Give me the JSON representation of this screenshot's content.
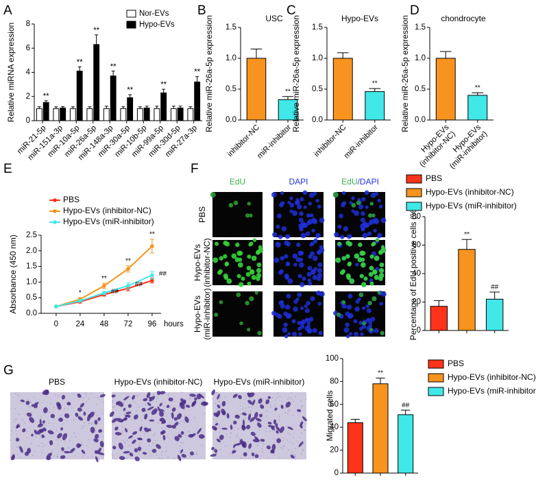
{
  "chart_data": [
    {
      "panel": "A",
      "type": "grouped_bar",
      "ylabel": "Relative miRNA expression",
      "categories": [
        "miR-21-5p",
        "miR-151a-3p",
        "miR-10a-5p",
        "miR-26a-5p",
        "miR-148a-3p",
        "miR-30a-5p",
        "miR-10b-5p",
        "miR-99a-5p",
        "miR-30d-5p",
        "miR-27a-3p"
      ],
      "series": [
        {
          "name": "Nor-EVs",
          "color": "#ffffff",
          "values": [
            1,
            1,
            1,
            1,
            1,
            1,
            1,
            1,
            1,
            1
          ],
          "errors": [
            0.15,
            0.15,
            0.15,
            0.15,
            0.2,
            0.15,
            0.15,
            0.2,
            0.2,
            0.15
          ]
        },
        {
          "name": "Hypo-EVs",
          "color": "#000000",
          "values": [
            1.5,
            1.05,
            4.1,
            6.3,
            3.7,
            1.9,
            1.05,
            2.3,
            1.05,
            3.2
          ],
          "errors": [
            0.15,
            0.12,
            0.35,
            0.8,
            0.4,
            0.25,
            0.15,
            0.3,
            0.15,
            0.45
          ],
          "annotations": [
            "**",
            null,
            "**",
            "**",
            "**",
            "**",
            null,
            "**",
            null,
            "**"
          ]
        }
      ],
      "ylim": [
        0,
        8
      ],
      "yticks": [
        0,
        2,
        4,
        6,
        8
      ]
    },
    {
      "panel": "B",
      "type": "bar",
      "title": "USC",
      "ylabel": "Relative miR-26a-5p expression",
      "categories": [
        "inhibitor-NC",
        "miR-inhibitor"
      ],
      "values": [
        1.0,
        0.33
      ],
      "errors": [
        0.15,
        0.05
      ],
      "annotations": [
        null,
        "**"
      ],
      "colors": [
        "#f7931e",
        "#40e8e8"
      ],
      "ylim": [
        0,
        1.5
      ],
      "yticks": [
        {
          "value": 0,
          "label": "0.0"
        },
        0.5,
        {
          "value": 1,
          "label": "1.0"
        },
        1.5
      ]
    },
    {
      "panel": "C",
      "type": "bar",
      "title": "Hypo-EVs",
      "ylabel": "Relative miR-26a-5p expression",
      "categories": [
        "inhibitor-NC",
        "miR-inhibitor"
      ],
      "values": [
        1.0,
        0.46
      ],
      "errors": [
        0.09,
        0.05
      ],
      "annotations": [
        null,
        "**"
      ],
      "colors": [
        "#f7931e",
        "#40e8e8"
      ],
      "ylim": [
        0,
        1.5
      ],
      "yticks": [
        {
          "value": 0,
          "label": "0.0"
        },
        0.5,
        {
          "value": 1,
          "label": "1.0"
        },
        1.5
      ]
    },
    {
      "panel": "D",
      "type": "bar",
      "title": "chondrocyte",
      "ylabel": "Relative miR-26a-5p expression",
      "categories": [
        [
          "Hypo-EVs",
          "(inhibitor-NC)"
        ],
        [
          "Hypo-EVs",
          "(miR-inhibitor)"
        ]
      ],
      "values": [
        1.0,
        0.4
      ],
      "errors": [
        0.11,
        0.04
      ],
      "annotations": [
        null,
        "**"
      ],
      "colors": [
        "#f7931e",
        "#40e8e8"
      ],
      "ylim": [
        0,
        1.5
      ],
      "yticks": [
        {
          "value": 0,
          "label": "0.0"
        },
        0.5,
        {
          "value": 1,
          "label": "1.0"
        },
        1.5
      ]
    },
    {
      "panel": "E",
      "type": "line",
      "ylabel": "Absorbance (450 nm)",
      "xlabel": "hours",
      "x": [
        0,
        24,
        48,
        72,
        96
      ],
      "xlim": [
        -15,
        105
      ],
      "xticks": [
        0,
        24,
        48,
        72,
        96
      ],
      "ylim": [
        0,
        2.5
      ],
      "yticks": [
        {
          "value": 0,
          "label": "0.0"
        },
        0.5,
        {
          "value": 1,
          "label": "1.0"
        },
        1.5,
        {
          "value": 2,
          "label": "2.0"
        },
        2.5
      ],
      "series": [
        {
          "name": "PBS",
          "color": "#ff3319",
          "values": [
            0.22,
            0.37,
            0.6,
            0.8,
            1.05
          ],
          "errors": [
            0.02,
            0.04,
            0.05,
            0.08,
            0.08
          ]
        },
        {
          "name": "Hypo-EVs (inhibitor-NC)",
          "color": "#f7931e",
          "values": [
            0.22,
            0.45,
            0.88,
            1.42,
            2.15
          ],
          "errors": [
            0.02,
            0.05,
            0.08,
            0.1,
            0.22
          ],
          "annotations": [
            null,
            "*",
            "**",
            "**",
            "**"
          ]
        },
        {
          "name": "Hypo-EVs (miR-inhibitor)",
          "color": "#40e8e8",
          "values": [
            0.22,
            0.4,
            0.65,
            0.88,
            1.22
          ],
          "errors": [
            0.02,
            0.04,
            0.05,
            0.1,
            0.12
          ],
          "annotations": [
            null,
            null,
            "##",
            "##",
            "##"
          ]
        }
      ]
    },
    {
      "panel": "F",
      "type": "bar",
      "ylabel": "Percentage of EdU positive cells (%)",
      "categories": [
        "PBS",
        "Hypo-EVs (inhibitor-NC)",
        "Hypo-EVs (miR-inhibitor)"
      ],
      "values": [
        17,
        57,
        22
      ],
      "errors": [
        4,
        7,
        5
      ],
      "annotations": [
        null,
        "**",
        "##"
      ],
      "colors": [
        "#ff3319",
        "#f7931e",
        "#40e8e8"
      ],
      "ylim": [
        0,
        80
      ],
      "yticks": [
        0,
        20,
        40,
        60,
        80
      ],
      "legend": "top",
      "image_columns": [
        [
          {
            "text": "EdU",
            "color": "#3cb44b"
          }
        ],
        [
          {
            "text": "DAPI",
            "color": "#2233dd"
          }
        ],
        [
          {
            "text": "EdU",
            "color": "#3cb44b"
          },
          {
            "text": "/DAPI",
            "color": "#2233dd"
          }
        ]
      ],
      "image_rows": [
        [
          "PBS"
        ],
        [
          "Hypo-EVs",
          "(inhibitor-NC)"
        ],
        [
          "Hypo-EVs",
          "(miR-inhibitor)"
        ]
      ]
    },
    {
      "panel": "G",
      "type": "bar",
      "ylabel": "Migrated cells",
      "categories": [
        "PBS",
        "Hypo-EVs (inhibitor-NC)",
        "Hypo-EVs (miR-inhibitor)"
      ],
      "values": [
        44,
        78,
        51
      ],
      "errors": [
        3,
        5,
        4
      ],
      "annotations": [
        null,
        "**",
        "##"
      ],
      "colors": [
        "#ff3319",
        "#f7931e",
        "#40e8e8"
      ],
      "ylim": [
        0,
        100
      ],
      "yticks": [
        0,
        20,
        40,
        60,
        80,
        100
      ],
      "legend": "right",
      "image_titles": [
        "PBS",
        "Hypo-EVs (inhibitor-NC)",
        "Hypo-EVs (miR-inhibitor)"
      ]
    }
  ]
}
